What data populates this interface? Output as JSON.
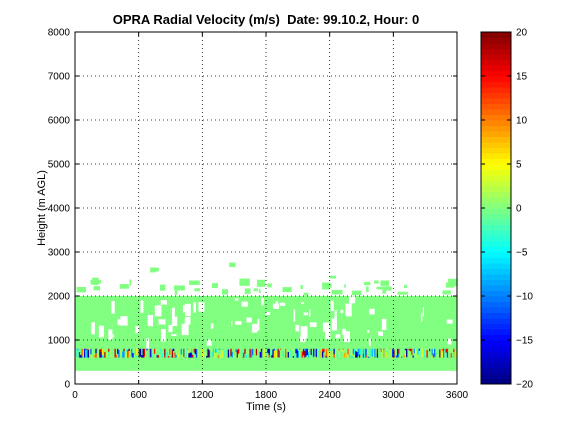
{
  "chart_data": {
    "type": "heatmap",
    "title": "OPRA Radial Velocity (m/s)  Date: 99.10.2, Hour: 0",
    "xlabel": "Time (s)",
    "ylabel": "Height (m AGL)",
    "xlim": [
      0,
      3600
    ],
    "ylim": [
      0,
      8000
    ],
    "xticks": [
      0,
      600,
      1200,
      1800,
      2400,
      3000,
      3600
    ],
    "yticks": [
      0,
      1000,
      2000,
      3000,
      4000,
      5000,
      6000,
      7000,
      8000
    ],
    "grid": true,
    "colorbar": {
      "colormap": "jet",
      "clim": [
        -20,
        20
      ],
      "ticks": [
        -20,
        -15,
        -10,
        -5,
        0,
        5,
        10,
        15,
        20
      ],
      "tick_labels": [
        "−20",
        "−15",
        "−10",
        "−5",
        "0",
        "5",
        "10",
        "15",
        "20"
      ]
    },
    "fill": {
      "solid_layer_height_m": [
        300,
        2000
      ],
      "typical_velocity_ms": 0,
      "sparse_returns_top_m": 2800,
      "low_level_band_height_m": [
        600,
        800
      ],
      "low_level_band_velocity_range_ms": [
        -20,
        20
      ],
      "time_range_s": [
        0,
        3600
      ]
    }
  }
}
